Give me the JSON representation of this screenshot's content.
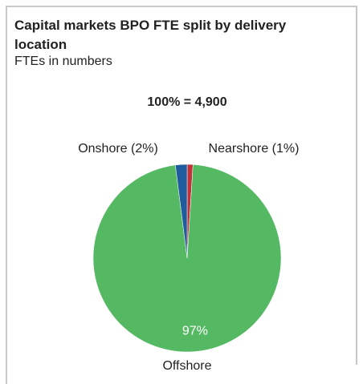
{
  "chart_data": {
    "type": "pie",
    "title": "Capital markets BPO FTE split by delivery location",
    "subtitle": "FTEs in numbers",
    "annotation": "100% = 4,900",
    "categories": [
      "Nearshore (1%)",
      "Offshore",
      "Onshore (2%)"
    ],
    "values": [
      1,
      97,
      2
    ],
    "value_labels": [
      null,
      "97%",
      null
    ],
    "colors": [
      "#c1323b",
      "#55b964",
      "#1f5c9e"
    ]
  }
}
